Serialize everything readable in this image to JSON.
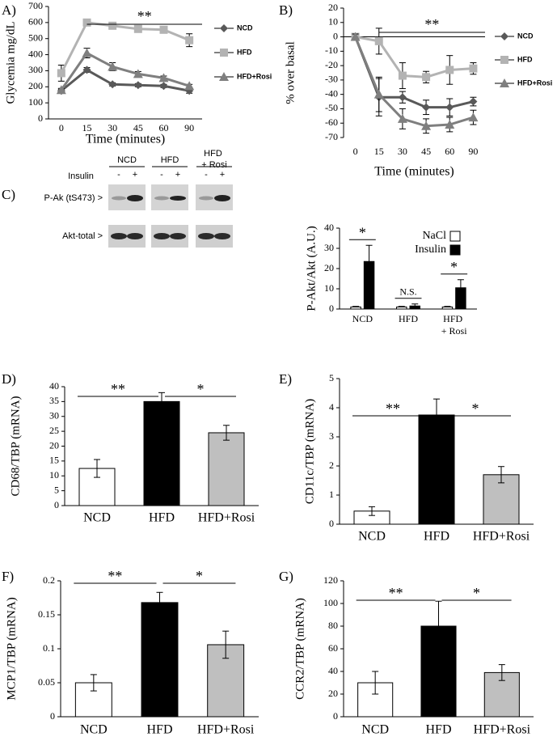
{
  "chart_data": [
    {
      "type": "line",
      "panel": "A)",
      "ylabel": "Glycemia mg/dL",
      "xlabel": "Time (minutes)",
      "categories": [
        "0",
        "15",
        "30",
        "45",
        "60",
        "90"
      ],
      "ylim": [
        0,
        700
      ],
      "yticks": [
        0,
        100,
        200,
        300,
        400,
        500,
        600,
        700
      ],
      "annotation": "**",
      "legend": "right",
      "series": [
        {
          "name": "NCD",
          "color": "#595959",
          "marker": "diamond",
          "values": [
            175,
            305,
            215,
            210,
            205,
            175
          ],
          "errors": [
            10,
            15,
            10,
            10,
            10,
            15
          ]
        },
        {
          "name": "HFD",
          "color": "#b3b3b3",
          "marker": "square",
          "values": [
            285,
            600,
            580,
            560,
            555,
            490
          ],
          "errors": [
            50,
            15,
            15,
            15,
            15,
            40
          ]
        },
        {
          "name": "HFD+Rosi",
          "color": "#7f7f7f",
          "marker": "triangle",
          "values": [
            180,
            410,
            325,
            280,
            255,
            205
          ],
          "errors": [
            10,
            30,
            25,
            15,
            12,
            10
          ]
        }
      ]
    },
    {
      "type": "line",
      "panel": "B)",
      "ylabel": "% over basal",
      "xlabel": "Time (minutes)",
      "categories": [
        "0",
        "15",
        "30",
        "45",
        "60",
        "90"
      ],
      "ylim": [
        -70,
        20
      ],
      "yticks": [
        -70,
        -60,
        -50,
        -40,
        -30,
        -20,
        -10,
        0,
        10,
        20
      ],
      "annotation": "**",
      "legend": "right",
      "series": [
        {
          "name": "NCD",
          "color": "#595959",
          "marker": "diamond",
          "values": [
            0,
            -42,
            -42,
            -49,
            -49,
            -45
          ],
          "errors": [
            2,
            13,
            4,
            5,
            6,
            3
          ]
        },
        {
          "name": "HFD",
          "color": "#b3b3b3",
          "marker": "square",
          "values": [
            0,
            -3,
            -27,
            -28,
            -23,
            -22
          ],
          "errors": [
            2,
            9,
            9,
            4,
            10,
            4
          ]
        },
        {
          "name": "HFD+Rosi",
          "color": "#7f7f7f",
          "marker": "triangle",
          "values": [
            0,
            -40,
            -57,
            -62,
            -61,
            -56
          ],
          "errors": [
            2,
            12,
            7,
            5,
            5,
            5
          ]
        }
      ]
    },
    {
      "type": "bar",
      "panel": "C)",
      "ylabel": "P-Akt/Akt (A.U.)",
      "categories": [
        "NCD",
        "HFD",
        "HFD + Rosi"
      ],
      "ylim": [
        0,
        40
      ],
      "yticks": [
        0,
        10,
        20,
        30,
        40
      ],
      "legend": "upper right",
      "annotations": [
        "*",
        "N.S.",
        "*"
      ],
      "series": [
        {
          "name": "NaCl",
          "color": "#ffffff",
          "values": [
            1,
            1,
            1
          ],
          "errors": [
            0.3,
            0.3,
            0.3
          ]
        },
        {
          "name": "Insulin",
          "color": "#000000",
          "values": [
            23.5,
            1.5,
            10.5
          ],
          "errors": [
            8,
            1,
            4
          ]
        }
      ]
    },
    {
      "type": "bar",
      "panel": "D)",
      "ylabel": "CD68/TBP (mRNA)",
      "categories": [
        "NCD",
        "HFD",
        "HFD+Rosi"
      ],
      "colors": [
        "#ffffff",
        "#000000",
        "#bfbfbf"
      ],
      "values": [
        12.5,
        35,
        24.5
      ],
      "errors": [
        3,
        3,
        2.5
      ],
      "ylim": [
        0,
        40
      ],
      "yticks": [
        0,
        5,
        10,
        15,
        20,
        25,
        30,
        35,
        40
      ],
      "annotations": [
        "**",
        "*"
      ]
    },
    {
      "type": "bar",
      "panel": "E)",
      "ylabel": "CD11c/TBP (mRNA)",
      "categories": [
        "NCD",
        "HFD",
        "HFD+Rosi"
      ],
      "colors": [
        "#ffffff",
        "#000000",
        "#bfbfbf"
      ],
      "values": [
        0.45,
        3.75,
        1.7
      ],
      "errors": [
        0.15,
        0.55,
        0.28
      ],
      "ylim": [
        0,
        5
      ],
      "yticks": [
        0,
        1,
        2,
        3,
        4,
        5
      ],
      "annotations": [
        "**",
        "*"
      ]
    },
    {
      "type": "bar",
      "panel": "F)",
      "ylabel": "MCP1/TBP (mRNA)",
      "categories": [
        "NCD",
        "HFD",
        "HFD+Rosi"
      ],
      "colors": [
        "#ffffff",
        "#000000",
        "#bfbfbf"
      ],
      "values": [
        0.05,
        0.168,
        0.106
      ],
      "errors": [
        0.012,
        0.015,
        0.02
      ],
      "ylim": [
        0,
        0.2
      ],
      "yticks": [
        0,
        0.05,
        0.1,
        0.15,
        0.2
      ],
      "annotations": [
        "**",
        "*"
      ]
    },
    {
      "type": "bar",
      "panel": "G)",
      "ylabel": "CCR2/TBP (mRNA)",
      "categories": [
        "NCD",
        "HFD",
        "HFD+Rosi"
      ],
      "colors": [
        "#ffffff",
        "#000000",
        "#bfbfbf"
      ],
      "values": [
        30,
        80,
        39
      ],
      "errors": [
        10,
        22,
        7
      ],
      "ylim": [
        0,
        120
      ],
      "yticks": [
        0,
        20,
        40,
        60,
        80,
        100,
        120
      ],
      "annotations": [
        "**",
        "*"
      ]
    }
  ],
  "blot": {
    "groups": [
      "NCD",
      "HFD",
      "HFD + Rosi"
    ],
    "treatment": "Insulin",
    "levels": [
      "-",
      "+"
    ],
    "rows": [
      "P-Ak (tS473) >",
      "Akt-total >"
    ]
  }
}
